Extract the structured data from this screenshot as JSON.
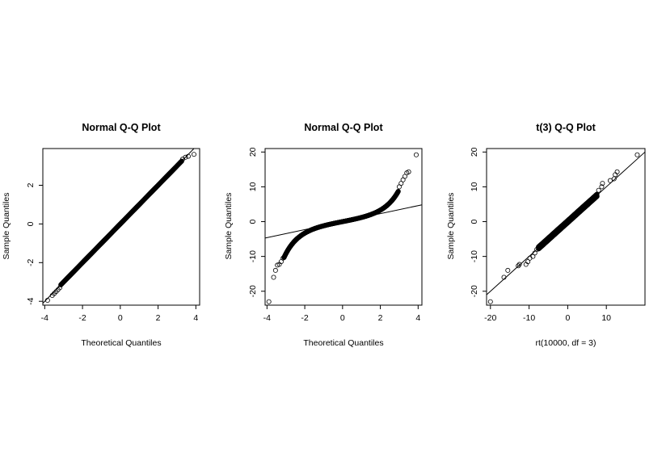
{
  "chart_data": [
    {
      "type": "scatter",
      "title": "Normal Q-Q Plot",
      "xlabel": "Theoretical Quantiles",
      "ylabel": "Sample Quantiles",
      "xlim": [
        -4.1,
        4.2
      ],
      "ylim": [
        -4.2,
        3.9
      ],
      "xticks": [
        -4,
        -2,
        0,
        2,
        4
      ],
      "yticks": [
        -4,
        -2,
        0,
        2
      ],
      "xtick_labels": [
        "-4",
        "-2",
        "0",
        "2",
        "4"
      ],
      "ytick_labels": [
        "-4",
        "-2",
        "0",
        "2"
      ],
      "reference_line": {
        "intercept": 0,
        "slope": 1
      },
      "outer_points": [
        [
          -3.85,
          -3.95
        ],
        [
          -3.6,
          -3.7
        ],
        [
          -3.5,
          -3.6
        ],
        [
          -3.4,
          -3.5
        ],
        [
          -3.3,
          -3.4
        ],
        [
          -3.2,
          -3.3
        ],
        [
          3.3,
          3.35
        ],
        [
          3.45,
          3.45
        ],
        [
          3.6,
          3.5
        ],
        [
          3.9,
          3.6
        ]
      ],
      "series": [
        {
          "bulk_x_range": [
            -3.15,
            3.25
          ],
          "bulk_y_range": [
            -3.2,
            3.25
          ]
        }
      ]
    },
    {
      "type": "scatter",
      "title": "Normal Q-Q Plot",
      "xlabel": "Theoretical Quantiles",
      "ylabel": "Sample Quantiles",
      "xlim": [
        -4.1,
        4.2
      ],
      "ylim": [
        -24,
        21
      ],
      "xticks": [
        -4,
        -2,
        0,
        2,
        4
      ],
      "yticks": [
        -20,
        -10,
        0,
        10,
        20
      ],
      "xtick_labels": [
        "-4",
        "-2",
        "0",
        "2",
        "4"
      ],
      "ytick_labels": [
        "-20",
        "-10",
        "0",
        "10",
        "20"
      ],
      "reference_line": {
        "intercept": 0,
        "slope": 1.15
      },
      "outer_points": [
        [
          -3.9,
          -23
        ],
        [
          -3.65,
          -16
        ],
        [
          -3.55,
          -14
        ],
        [
          -3.45,
          -12.5
        ],
        [
          -3.35,
          -12.3
        ],
        [
          -3.25,
          -11.5
        ],
        [
          -3.15,
          -10.5
        ],
        [
          3.0,
          10.0
        ],
        [
          3.1,
          11.0
        ],
        [
          3.2,
          12.0
        ],
        [
          3.3,
          13.0
        ],
        [
          3.4,
          14.0
        ],
        [
          3.5,
          14.3
        ],
        [
          3.9,
          19.2
        ]
      ],
      "series": [
        {
          "bulk_curve": "t(3) quantiles vs normal quantiles",
          "bulk_x_range": [
            -3.1,
            2.95
          ]
        }
      ]
    },
    {
      "type": "scatter",
      "title": "t(3) Q-Q Plot",
      "xlabel": "rt(10000, df = 3)",
      "ylabel": "Sample Quantiles",
      "xlim": [
        -21,
        20
      ],
      "ylim": [
        -24,
        21
      ],
      "xticks": [
        -20,
        -10,
        0,
        10
      ],
      "yticks": [
        -20,
        -10,
        0,
        10,
        20
      ],
      "xtick_labels": [
        "-20",
        "-10",
        "0",
        "10"
      ],
      "ytick_labels": [
        "-20",
        "-10",
        "0",
        "10",
        "20"
      ],
      "reference_line": {
        "intercept": 0,
        "slope": 1
      },
      "outer_points": [
        [
          -20,
          -23
        ],
        [
          -16.5,
          -16
        ],
        [
          -15.5,
          -14
        ],
        [
          -12.8,
          -12.7
        ],
        [
          -12.5,
          -12.3
        ],
        [
          -10.8,
          -12.3
        ],
        [
          -10.3,
          -11.5
        ],
        [
          -9.8,
          -10.5
        ],
        [
          -9.0,
          -10.0
        ],
        [
          -8.5,
          -9.0
        ],
        [
          -8.0,
          -8.0
        ],
        [
          8.0,
          9.0
        ],
        [
          8.8,
          10.0
        ],
        [
          9.0,
          11.0
        ],
        [
          11.0,
          11.8
        ],
        [
          12.0,
          12.3
        ],
        [
          12.3,
          13.5
        ],
        [
          12.8,
          14.3
        ],
        [
          18.0,
          19.2
        ]
      ],
      "series": [
        {
          "bulk_x_range": [
            -7.6,
            7.6
          ]
        }
      ]
    }
  ]
}
